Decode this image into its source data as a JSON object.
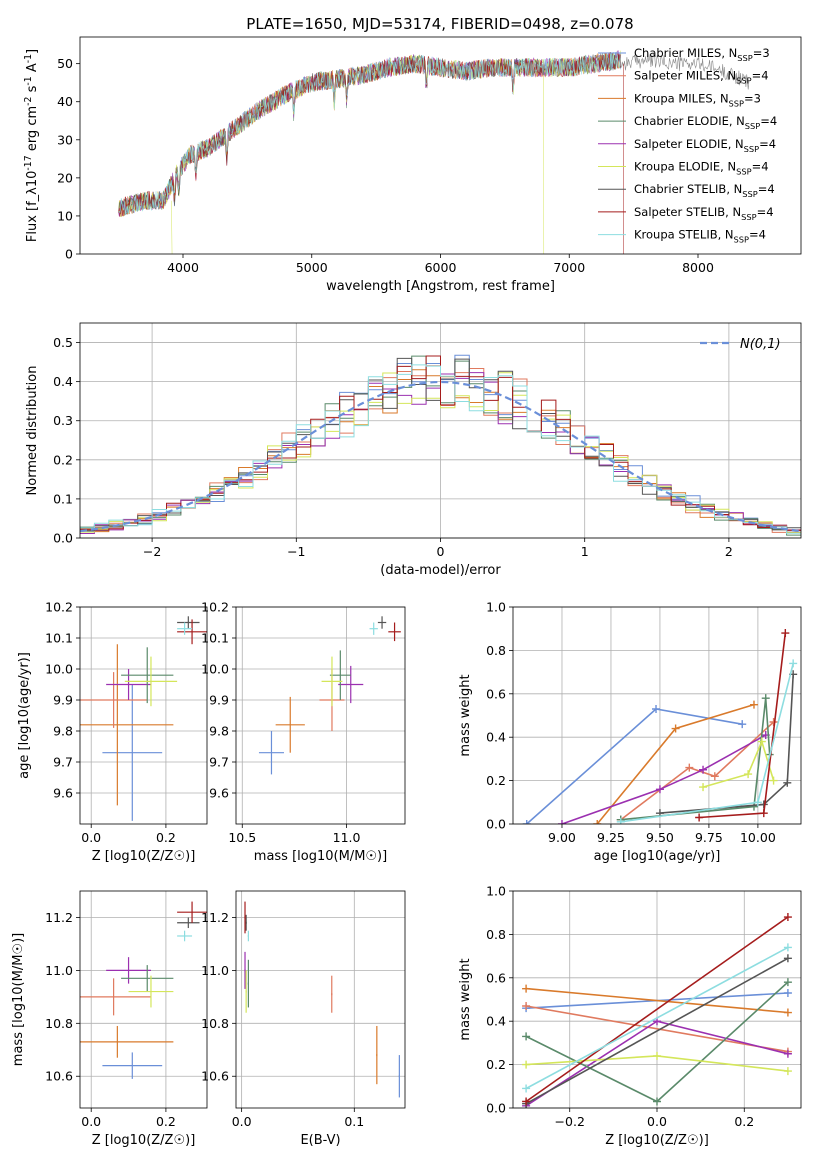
{
  "figure": {
    "title": "PLATE=1650, MJD=53174, FIBERID=0498, z=0.078"
  },
  "colors": {
    "Chabrier MILES": "#6a8fd8",
    "Salpeter MILES": "#e07a5f",
    "Kroupa MILES": "#d97a2b",
    "Chabrier ELODIE": "#5a8a6a",
    "Salpeter ELODIE": "#9b30b0",
    "Kroupa ELODIE": "#d4e65a",
    "Chabrier STELIB": "#555555",
    "Salpeter STELIB": "#a51c1c",
    "Kroupa STELIB": "#8ddde0",
    "gaussian": "#6a8fd8",
    "grid": "#b0b0b0"
  },
  "chart_data": [
    {
      "id": "spectrum",
      "type": "line",
      "xlabel": "wavelength [Angstrom, rest frame]",
      "ylabel": "Flux [f_λ10^-17 erg cm^-2 s^-1 A^-1]",
      "xlim": [
        3200,
        8800
      ],
      "ylim": [
        0,
        57
      ],
      "xticks": [
        4000,
        5000,
        6000,
        7000,
        8000
      ],
      "yticks": [
        0,
        10,
        20,
        30,
        40,
        50
      ],
      "grid": false,
      "legend_position": "top-right",
      "continuum": {
        "x": [
          3500,
          3700,
          3850,
          3950,
          4050,
          4200,
          4400,
          4600,
          4800,
          5000,
          5200,
          5400,
          5600,
          5800,
          6000,
          6200,
          6400,
          6600,
          6800,
          7000,
          7200,
          7400
        ],
        "y": [
          12,
          14,
          14,
          21,
          26,
          28,
          33,
          38,
          42,
          45,
          46,
          47,
          49,
          50,
          49,
          48,
          49,
          49,
          49,
          49,
          50,
          51
        ]
      },
      "observed_extension": {
        "x": [
          7400,
          7600,
          7800,
          8000,
          8200,
          8400
        ],
        "y": [
          50,
          51,
          50,
          50,
          48,
          45
        ]
      },
      "series": [
        {
          "name": "Chabrier MILES",
          "n_ssp": "3"
        },
        {
          "name": "Salpeter MILES",
          "n_ssp": "4"
        },
        {
          "name": "Kroupa MILES",
          "n_ssp": "3"
        },
        {
          "name": "Chabrier ELODIE",
          "n_ssp": "4"
        },
        {
          "name": "Salpeter ELODIE",
          "n_ssp": "4"
        },
        {
          "name": "Kroupa ELODIE",
          "n_ssp": "4"
        },
        {
          "name": "Chabrier STELIB",
          "n_ssp": "4"
        },
        {
          "name": "Salpeter STELIB",
          "n_ssp": "4"
        },
        {
          "name": "Kroupa STELIB",
          "n_ssp": "4"
        }
      ]
    },
    {
      "id": "residuals",
      "type": "histogram",
      "xlabel": "(data-model)/error",
      "ylabel": "Normed distribution",
      "xlim": [
        -2.5,
        2.5
      ],
      "ylim": [
        0,
        0.55
      ],
      "xticks": [
        -2,
        -1,
        0,
        1,
        2
      ],
      "yticks": [
        0.0,
        0.1,
        0.2,
        0.3,
        0.4,
        0.5
      ],
      "grid": true,
      "legend_position": "top-right",
      "legend": "N(0,1)",
      "bin_width": 0.1,
      "series_order": [
        "Chabrier MILES",
        "Salpeter MILES",
        "Kroupa MILES",
        "Chabrier ELODIE",
        "Salpeter ELODIE",
        "Kroupa ELODIE",
        "Chabrier STELIB",
        "Salpeter STELIB",
        "Kroupa STELIB"
      ]
    },
    {
      "id": "age_vs_Z",
      "type": "scatter",
      "xlabel": "Z [log10(Z/Z☉)]",
      "ylabel": "age [log10(age/yr)]",
      "xlim": [
        -0.03,
        0.31
      ],
      "ylim": [
        9.5,
        10.2
      ],
      "xticks": [
        0.0,
        0.2
      ],
      "yticks": [
        9.6,
        9.7,
        9.8,
        9.9,
        10.0,
        10.1,
        10.2
      ],
      "grid": true,
      "points": [
        {
          "series": "Chabrier MILES",
          "x": 0.11,
          "xerr": 0.08,
          "y": 9.73,
          "yerr": 0.22
        },
        {
          "series": "Kroupa MILES",
          "x": 0.07,
          "xerr": 0.15,
          "y": 9.82,
          "yerr": 0.26
        },
        {
          "series": "Salpeter MILES",
          "x": 0.06,
          "xerr": 0.09,
          "y": 9.9,
          "yerr": 0.09
        },
        {
          "series": "Salpeter ELODIE",
          "x": 0.1,
          "xerr": 0.06,
          "y": 9.95,
          "yerr": 0.05
        },
        {
          "series": "Chabrier ELODIE",
          "x": 0.15,
          "xerr": 0.07,
          "y": 9.98,
          "yerr": 0.09
        },
        {
          "series": "Kroupa ELODIE",
          "x": 0.16,
          "xerr": 0.07,
          "y": 9.96,
          "yerr": 0.08
        },
        {
          "series": "Chabrier STELIB",
          "x": 0.26,
          "xerr": 0.03,
          "y": 10.15,
          "yerr": 0.02
        },
        {
          "series": "Salpeter STELIB",
          "x": 0.27,
          "xerr": 0.04,
          "y": 10.12,
          "yerr": 0.04
        },
        {
          "series": "Kroupa STELIB",
          "x": 0.25,
          "xerr": 0.02,
          "y": 10.13,
          "yerr": 0.02
        }
      ]
    },
    {
      "id": "age_vs_mass",
      "type": "scatter",
      "xlabel": "mass [log10(M/M☉)]",
      "ylabel": "",
      "xlim": [
        10.47,
        11.28
      ],
      "ylim": [
        9.5,
        10.2
      ],
      "xticks": [
        10.5,
        11.0
      ],
      "yticks": [
        9.6,
        9.7,
        9.8,
        9.9,
        10.0,
        10.1,
        10.2
      ],
      "grid": true,
      "points": [
        {
          "series": "Chabrier MILES",
          "x": 10.64,
          "xerr": 0.06,
          "y": 9.73,
          "yerr": 0.07
        },
        {
          "series": "Kroupa MILES",
          "x": 10.73,
          "xerr": 0.07,
          "y": 9.82,
          "yerr": 0.09
        },
        {
          "series": "Salpeter MILES",
          "x": 10.93,
          "xerr": 0.06,
          "y": 9.9,
          "yerr": 0.1
        },
        {
          "series": "Salpeter ELODIE",
          "x": 11.02,
          "xerr": 0.06,
          "y": 9.95,
          "yerr": 0.06
        },
        {
          "series": "Chabrier ELODIE",
          "x": 10.97,
          "xerr": 0.05,
          "y": 9.98,
          "yerr": 0.08
        },
        {
          "series": "Kroupa ELODIE",
          "x": 10.93,
          "xerr": 0.05,
          "y": 9.96,
          "yerr": 0.08
        },
        {
          "series": "Chabrier STELIB",
          "x": 11.17,
          "xerr": 0.02,
          "y": 10.15,
          "yerr": 0.02
        },
        {
          "series": "Salpeter STELIB",
          "x": 11.23,
          "xerr": 0.03,
          "y": 10.12,
          "yerr": 0.03
        },
        {
          "series": "Kroupa STELIB",
          "x": 11.13,
          "xerr": 0.02,
          "y": 10.13,
          "yerr": 0.02
        }
      ]
    },
    {
      "id": "mass_weight_vs_age",
      "type": "line",
      "xlabel": "age [log10(age/yr)]",
      "ylabel": "mass weight",
      "xlim": [
        8.75,
        10.22
      ],
      "ylim": [
        0,
        1
      ],
      "xticks": [
        9.0,
        9.25,
        9.5,
        9.75,
        10.0
      ],
      "yticks": [
        0.0,
        0.2,
        0.4,
        0.6,
        0.8,
        1.0
      ],
      "grid": true,
      "series": [
        {
          "name": "Chabrier MILES",
          "x": [
            8.82,
            9.48,
            9.92
          ],
          "y": [
            0.0,
            0.53,
            0.46
          ]
        },
        {
          "name": "Kroupa MILES",
          "x": [
            9.18,
            9.58,
            9.98
          ],
          "y": [
            0.0,
            0.44,
            0.55
          ]
        },
        {
          "name": "Salpeter MILES",
          "x": [
            9.3,
            9.65,
            9.78,
            10.08
          ],
          "y": [
            0.02,
            0.26,
            0.22,
            0.47
          ]
        },
        {
          "name": "Salpeter ELODIE",
          "x": [
            9.0,
            9.5,
            9.72,
            10.04
          ],
          "y": [
            0.0,
            0.16,
            0.25,
            0.41
          ]
        },
        {
          "name": "Chabrier ELODIE",
          "x": [
            9.3,
            9.98,
            10.04,
            10.06
          ],
          "y": [
            0.02,
            0.08,
            0.58,
            0.32
          ]
        },
        {
          "name": "Kroupa ELODIE",
          "x": [
            9.72,
            9.95,
            10.02,
            10.08
          ],
          "y": [
            0.17,
            0.23,
            0.38,
            0.2
          ]
        },
        {
          "name": "Chabrier STELIB",
          "x": [
            9.5,
            10.03,
            10.15,
            10.18
          ],
          "y": [
            0.05,
            0.09,
            0.19,
            0.69
          ]
        },
        {
          "name": "Salpeter STELIB",
          "x": [
            9.7,
            10.03,
            10.14
          ],
          "y": [
            0.03,
            0.05,
            0.88
          ]
        },
        {
          "name": "Kroupa STELIB",
          "x": [
            9.3,
            10.0,
            10.18
          ],
          "y": [
            0.01,
            0.1,
            0.74
          ]
        }
      ]
    },
    {
      "id": "mass_vs_Z",
      "type": "scatter",
      "xlabel": "Z [log10(Z/Z☉)]",
      "ylabel": "mass [log10(M/M☉)]",
      "xlim": [
        -0.03,
        0.31
      ],
      "ylim": [
        10.48,
        11.3
      ],
      "xticks": [
        0.0,
        0.2
      ],
      "yticks": [
        10.6,
        10.8,
        11.0,
        11.2
      ],
      "grid": true,
      "points": [
        {
          "series": "Chabrier MILES",
          "x": 0.11,
          "xerr": 0.08,
          "y": 10.64,
          "yerr": 0.05
        },
        {
          "series": "Kroupa MILES",
          "x": 0.07,
          "xerr": 0.15,
          "y": 10.73,
          "yerr": 0.06
        },
        {
          "series": "Salpeter MILES",
          "x": 0.06,
          "xerr": 0.1,
          "y": 10.9,
          "yerr": 0.07
        },
        {
          "series": "Salpeter ELODIE",
          "x": 0.1,
          "xerr": 0.06,
          "y": 11.0,
          "yerr": 0.05
        },
        {
          "series": "Chabrier ELODIE",
          "x": 0.15,
          "xerr": 0.07,
          "y": 10.97,
          "yerr": 0.05
        },
        {
          "series": "Kroupa ELODIE",
          "x": 0.16,
          "xerr": 0.06,
          "y": 10.92,
          "yerr": 0.06
        },
        {
          "series": "Chabrier STELIB",
          "x": 0.26,
          "xerr": 0.03,
          "y": 11.18,
          "yerr": 0.02
        },
        {
          "series": "Salpeter STELIB",
          "x": 0.27,
          "xerr": 0.04,
          "y": 11.22,
          "yerr": 0.04
        },
        {
          "series": "Kroupa STELIB",
          "x": 0.25,
          "xerr": 0.02,
          "y": 11.13,
          "yerr": 0.02
        }
      ]
    },
    {
      "id": "mass_vs_ebv",
      "type": "scatter",
      "xlabel": "E(B-V)",
      "ylabel": "",
      "xlim": [
        -0.005,
        0.145
      ],
      "ylim": [
        10.48,
        11.3
      ],
      "xticks": [
        0.0,
        0.1
      ],
      "yticks": [
        10.6,
        10.8,
        11.0,
        11.2
      ],
      "grid": true,
      "points": [
        {
          "series": "Chabrier MILES",
          "x": 0.14,
          "y": 10.6,
          "yerr": 0.08
        },
        {
          "series": "Kroupa MILES",
          "x": 0.12,
          "y": 10.68,
          "yerr": 0.11
        },
        {
          "series": "Salpeter MILES",
          "x": 0.08,
          "y": 10.91,
          "yerr": 0.07
        },
        {
          "series": "Salpeter ELODIE",
          "x": 0.003,
          "y": 11.0,
          "yerr": 0.07
        },
        {
          "series": "Chabrier ELODIE",
          "x": 0.006,
          "y": 10.95,
          "yerr": 0.09
        },
        {
          "series": "Kroupa ELODIE",
          "x": 0.004,
          "y": 10.92,
          "yerr": 0.08
        },
        {
          "series": "Chabrier STELIB",
          "x": 0.004,
          "y": 11.18,
          "yerr": 0.03
        },
        {
          "series": "Salpeter STELIB",
          "x": 0.003,
          "y": 11.2,
          "yerr": 0.06
        },
        {
          "series": "Kroupa STELIB",
          "x": 0.006,
          "y": 11.13,
          "yerr": 0.02
        }
      ]
    },
    {
      "id": "mass_weight_vs_Z",
      "type": "line",
      "xlabel": "Z [log10(Z/Z☉)]",
      "ylabel": "mass weight",
      "xlim": [
        -0.33,
        0.33
      ],
      "ylim": [
        0,
        1
      ],
      "xticks": [
        -0.2,
        0.0,
        0.2
      ],
      "yticks": [
        0.0,
        0.2,
        0.4,
        0.6,
        0.8,
        1.0
      ],
      "grid": true,
      "series": [
        {
          "name": "Chabrier MILES",
          "x": [
            -0.3,
            0.3
          ],
          "y": [
            0.46,
            0.53
          ]
        },
        {
          "name": "Kroupa MILES",
          "x": [
            -0.3,
            0.3
          ],
          "y": [
            0.55,
            0.44
          ]
        },
        {
          "name": "Salpeter MILES",
          "x": [
            -0.3,
            0.3
          ],
          "y": [
            0.47,
            0.26
          ]
        },
        {
          "name": "Salpeter ELODIE",
          "x": [
            -0.3,
            0.0,
            0.3
          ],
          "y": [
            0.01,
            0.4,
            0.25
          ]
        },
        {
          "name": "Chabrier ELODIE",
          "x": [
            -0.3,
            0.0,
            0.3
          ],
          "y": [
            0.33,
            0.03,
            0.58
          ]
        },
        {
          "name": "Kroupa ELODIE",
          "x": [
            -0.3,
            0.0,
            0.3
          ],
          "y": [
            0.2,
            0.24,
            0.17
          ]
        },
        {
          "name": "Chabrier STELIB",
          "x": [
            -0.3,
            0.3
          ],
          "y": [
            0.02,
            0.69
          ]
        },
        {
          "name": "Salpeter STELIB",
          "x": [
            -0.3,
            0.3
          ],
          "y": [
            0.03,
            0.88
          ]
        },
        {
          "name": "Kroupa STELIB",
          "x": [
            -0.3,
            0.3
          ],
          "y": [
            0.09,
            0.74
          ]
        }
      ]
    }
  ]
}
